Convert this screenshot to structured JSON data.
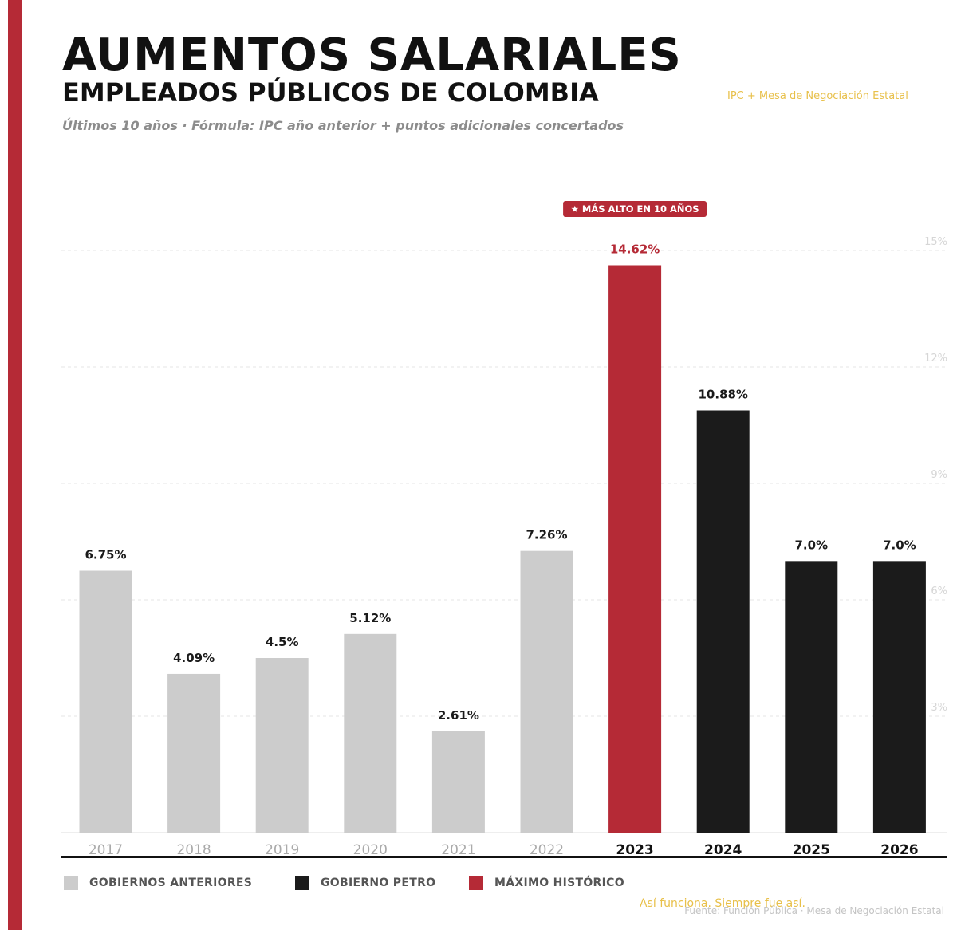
{
  "header": {
    "title": "AUMENTOS SALARIALES",
    "subtitle": "EMPLEADOS PÚBLICOS DE COLOMBIA",
    "note": "Últimos 10 años  ·  Fórmula: IPC año anterior + puntos adicionales concertados",
    "tag": "IPC + Mesa de Negociación Estatal"
  },
  "colors": {
    "accent": "#b52a36",
    "previous": "#cccccc",
    "petro": "#1b1b1b",
    "tag": "#e8c04a"
  },
  "chart_data": {
    "type": "bar",
    "categories": [
      "2017",
      "2018",
      "2019",
      "2020",
      "2021",
      "2022",
      "2023",
      "2024",
      "2025",
      "2026"
    ],
    "values": [
      6.75,
      4.09,
      4.5,
      5.12,
      2.61,
      7.26,
      14.62,
      10.88,
      7.0,
      7.0
    ],
    "value_labels": [
      "6.75%",
      "4.09%",
      "4.5%",
      "5.12%",
      "2.61%",
      "7.26%",
      "14.62%",
      "10.88%",
      "7.0%",
      "7.0%"
    ],
    "groups": [
      "previous",
      "previous",
      "previous",
      "previous",
      "previous",
      "previous",
      "max",
      "petro",
      "petro",
      "petro"
    ],
    "ylim": [
      0,
      15
    ],
    "yticks": [
      3,
      6,
      9,
      12,
      15
    ],
    "ytick_labels": [
      "3%",
      "6%",
      "9%",
      "12%",
      "15%"
    ],
    "grid": true,
    "highlight_badge": "★ MÁS ALTO EN 10 AÑOS",
    "highlight_index": 6
  },
  "legend": {
    "previous": "GOBIERNOS ANTERIORES",
    "petro": "GOBIERNO PETRO",
    "max": "MÁXIMO HISTÓRICO"
  },
  "footer": {
    "tagline": "Así funciona. Siempre fue así.",
    "source": "Fuente: Función Pública · Mesa de Negociación Estatal"
  }
}
